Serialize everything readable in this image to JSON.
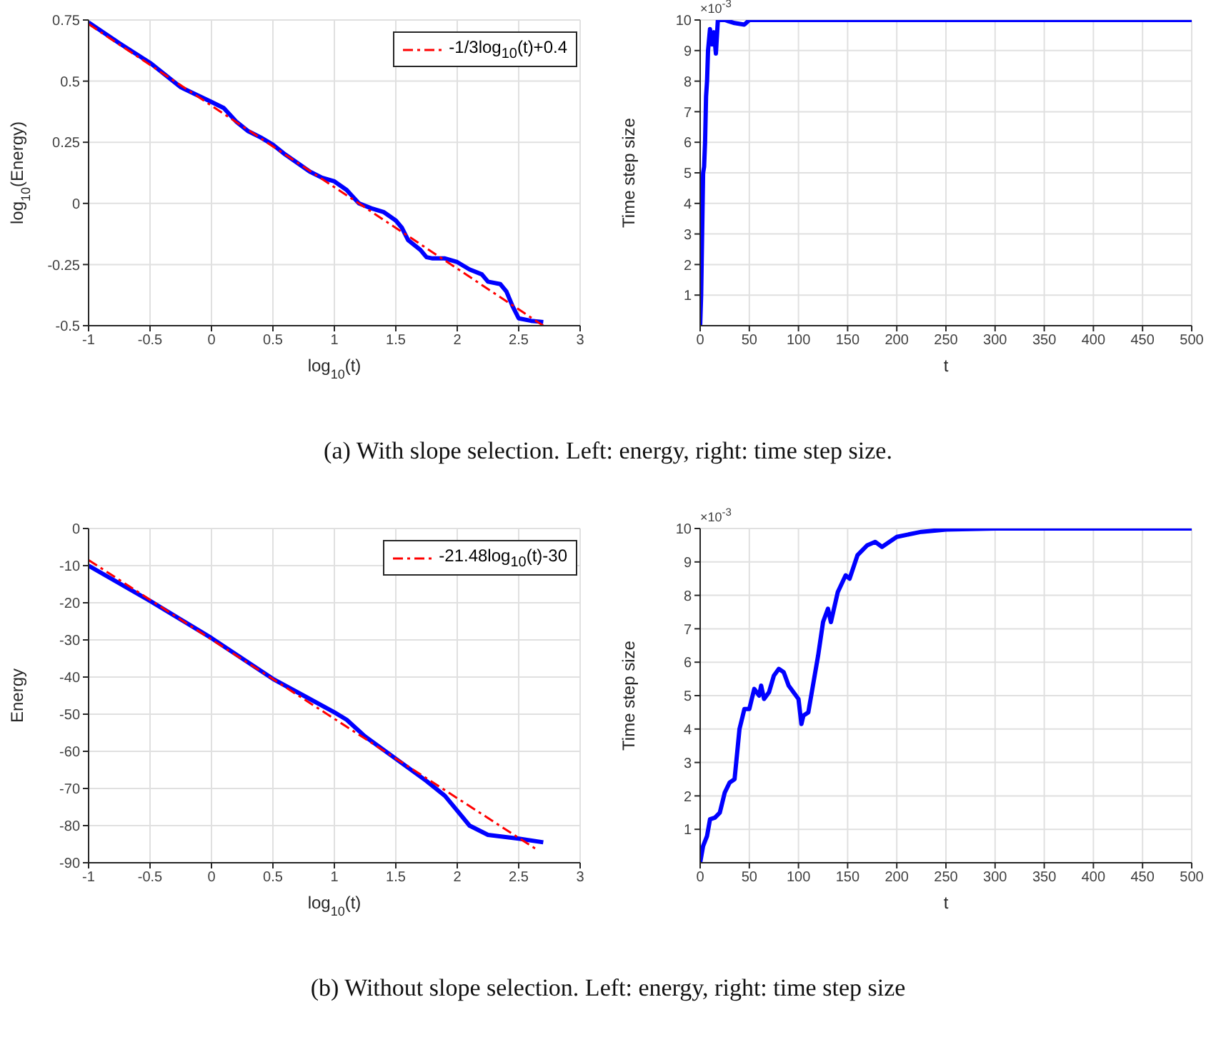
{
  "chart_data": [
    {
      "type": "line",
      "xlabel": "log$_{10}$(t)",
      "ylabel": "log$_{10}$(Energy)",
      "xlim": [
        -1,
        3
      ],
      "xticks": [
        -1,
        -0.5,
        0,
        0.5,
        1,
        1.5,
        2,
        2.5,
        3
      ],
      "ylim": [
        -0.5,
        0.75
      ],
      "yticks": [
        -0.5,
        -0.25,
        0,
        0.25,
        0.5,
        0.75
      ],
      "grid": true,
      "legend": "top right",
      "annotations": [
        "(a) With slope selection. Left: energy, right: time step size."
      ],
      "series": [
        {
          "color": "#0000ff",
          "line_style": "solid",
          "x": [
            -1,
            -0.75,
            -0.5,
            -0.25,
            0,
            0.1,
            0.2,
            0.3,
            0.4,
            0.5,
            0.6,
            0.7,
            0.8,
            0.9,
            1.0,
            1.1,
            1.2,
            1.3,
            1.4,
            1.5,
            1.55,
            1.6,
            1.7,
            1.75,
            1.8,
            1.9,
            2.0,
            2.1,
            2.2,
            2.25,
            2.35,
            2.4,
            2.45,
            2.5,
            2.6,
            2.7
          ],
          "values": [
            0.74,
            0.655,
            0.575,
            0.475,
            0.415,
            0.39,
            0.335,
            0.295,
            0.27,
            0.24,
            0.2,
            0.165,
            0.13,
            0.105,
            0.09,
            0.055,
            0.0,
            -0.02,
            -0.035,
            -0.07,
            -0.1,
            -0.15,
            -0.19,
            -0.22,
            -0.225,
            -0.225,
            -0.24,
            -0.27,
            -0.29,
            -0.32,
            -0.33,
            -0.36,
            -0.42,
            -0.47,
            -0.48,
            -0.485
          ]
        },
        {
          "name": "-1/3log$_{10}$(t)+0.4",
          "color": "#ff0000",
          "line_style": "dashed",
          "x": [
            -1,
            2.7
          ],
          "values": [
            0.733,
            -0.5
          ]
        }
      ]
    },
    {
      "type": "line",
      "xlabel": "t",
      "ylabel": "Time step size",
      "xlim": [
        0,
        500
      ],
      "xticks": [
        0,
        50,
        100,
        150,
        200,
        250,
        300,
        350,
        400,
        450,
        500
      ],
      "ylim": [
        0,
        10
      ],
      "yticks": [
        1,
        2,
        3,
        4,
        5,
        6,
        7,
        8,
        9,
        10
      ],
      "grid": true,
      "annotations": [
        "×10$^{-3}$"
      ],
      "series": [
        {
          "color": "#0000ff",
          "line_style": "solid",
          "x": [
            0,
            1,
            3,
            4,
            5,
            6,
            7,
            8,
            10,
            12,
            14,
            16,
            18,
            25,
            35,
            45,
            50,
            500
          ],
          "values": [
            0,
            1,
            5,
            5.2,
            6,
            7.5,
            8,
            9,
            9.7,
            9.2,
            9.6,
            8.9,
            10,
            10,
            9.9,
            9.85,
            10,
            10
          ]
        }
      ]
    },
    {
      "type": "line",
      "xlabel": "log$_{10}$(t)",
      "ylabel": "Energy",
      "xlim": [
        -1,
        3
      ],
      "xticks": [
        -1,
        -0.5,
        0,
        0.5,
        1,
        1.5,
        2,
        2.5,
        3
      ],
      "ylim": [
        -90,
        0
      ],
      "yticks": [
        -90,
        -80,
        -70,
        -60,
        -50,
        -40,
        -30,
        -20,
        -10,
        0
      ],
      "grid": true,
      "legend": "top right",
      "annotations": [
        "(b) Without slope selection. Left: energy, right: time step size"
      ],
      "series": [
        {
          "color": "#0000ff",
          "line_style": "solid",
          "x": [
            -1,
            -0.5,
            0,
            0.25,
            0.5,
            0.75,
            1,
            1.1,
            1.25,
            1.5,
            1.75,
            1.9,
            2.0,
            2.1,
            2.25,
            2.5,
            2.7
          ],
          "values": [
            -10,
            -19.5,
            -29.5,
            -35,
            -40.5,
            -45,
            -49.5,
            -51.5,
            -56,
            -62,
            -68,
            -72,
            -76,
            -80,
            -82.5,
            -83.5,
            -84.5
          ]
        },
        {
          "name": "-21.48log$_{10}$(t)-30",
          "color": "#ff0000",
          "line_style": "dashed",
          "x": [
            -1,
            2.65
          ],
          "values": [
            -8.5,
            -86.5
          ]
        }
      ]
    },
    {
      "type": "line",
      "xlabel": "t",
      "ylabel": "Time step size",
      "xlim": [
        0,
        500
      ],
      "xticks": [
        0,
        50,
        100,
        150,
        200,
        250,
        300,
        350,
        400,
        450,
        500
      ],
      "ylim": [
        0,
        10
      ],
      "yticks": [
        1,
        2,
        3,
        4,
        5,
        6,
        7,
        8,
        9,
        10
      ],
      "grid": true,
      "annotations": [
        "×10$^{-3}$"
      ],
      "series": [
        {
          "color": "#0000ff",
          "line_style": "solid",
          "x": [
            0,
            3,
            7,
            10,
            15,
            20,
            25,
            30,
            35,
            40,
            45,
            50,
            55,
            60,
            62,
            65,
            70,
            75,
            80,
            85,
            90,
            100,
            103,
            105,
            110,
            120,
            125,
            130,
            133,
            140,
            148,
            152,
            160,
            170,
            178,
            185,
            200,
            225,
            250,
            300,
            500
          ],
          "values": [
            0,
            0.5,
            0.8,
            1.3,
            1.35,
            1.5,
            2.1,
            2.4,
            2.5,
            4,
            4.6,
            4.6,
            5.2,
            5,
            5.3,
            4.9,
            5.1,
            5.6,
            5.8,
            5.7,
            5.3,
            4.9,
            4.15,
            4.4,
            4.5,
            6.2,
            7.2,
            7.6,
            7.2,
            8.1,
            8.6,
            8.5,
            9.2,
            9.5,
            9.6,
            9.45,
            9.75,
            9.9,
            9.97,
            10,
            10
          ]
        }
      ]
    }
  ]
}
